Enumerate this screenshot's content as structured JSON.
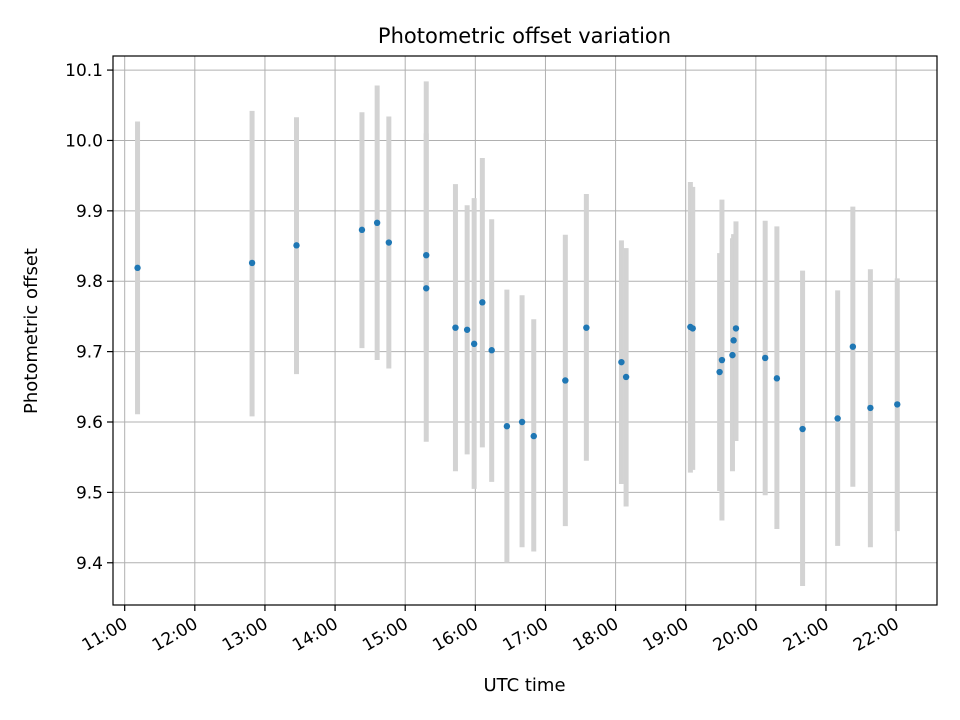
{
  "chart_data": {
    "type": "scatter",
    "title": "Photometric offset variation",
    "xlabel": "UTC time",
    "ylabel": "Photometric offset",
    "x_ticks": [
      "11:00",
      "12:00",
      "13:00",
      "14:00",
      "15:00",
      "16:00",
      "17:00",
      "18:00",
      "19:00",
      "20:00",
      "21:00",
      "22:00"
    ],
    "y_ticks": [
      "9.4",
      "9.5",
      "9.6",
      "9.7",
      "9.8",
      "9.9",
      "10.0",
      "10.1"
    ],
    "xlim": [
      "10:50",
      "22:35"
    ],
    "ylim": [
      9.34,
      10.12
    ],
    "grid": true,
    "marker_color": "#1f77b4",
    "errorbar_color": "#d3d3d3",
    "points": [
      {
        "x": "11:11",
        "y": 9.819,
        "ylow": 9.611,
        "yhigh": 10.027
      },
      {
        "x": "12:49",
        "y": 9.826,
        "ylow": 9.608,
        "yhigh": 10.042
      },
      {
        "x": "13:27",
        "y": 9.851,
        "ylow": 9.668,
        "yhigh": 10.033
      },
      {
        "x": "14:23",
        "y": 9.873,
        "ylow": 9.705,
        "yhigh": 10.04
      },
      {
        "x": "14:36",
        "y": 9.883,
        "ylow": 9.688,
        "yhigh": 10.078
      },
      {
        "x": "14:46",
        "y": 9.855,
        "ylow": 9.676,
        "yhigh": 10.034
      },
      {
        "x": "15:18",
        "y": 9.837,
        "ylow": 9.7,
        "yhigh": 10.01
      },
      {
        "x": "15:18",
        "y": 9.79,
        "ylow": 9.572,
        "yhigh": 10.084
      },
      {
        "x": "15:43",
        "y": 9.734,
        "ylow": 9.53,
        "yhigh": 9.938
      },
      {
        "x": "15:53",
        "y": 9.731,
        "ylow": 9.554,
        "yhigh": 9.908
      },
      {
        "x": "15:59",
        "y": 9.711,
        "ylow": 9.505,
        "yhigh": 9.918
      },
      {
        "x": "16:06",
        "y": 9.77,
        "ylow": 9.564,
        "yhigh": 9.975
      },
      {
        "x": "16:14",
        "y": 9.702,
        "ylow": 9.515,
        "yhigh": 9.888
      },
      {
        "x": "16:27",
        "y": 9.594,
        "ylow": 9.4,
        "yhigh": 9.788
      },
      {
        "x": "16:40",
        "y": 9.6,
        "ylow": 9.422,
        "yhigh": 9.78
      },
      {
        "x": "16:50",
        "y": 9.58,
        "ylow": 9.416,
        "yhigh": 9.746
      },
      {
        "x": "17:17",
        "y": 9.659,
        "ylow": 9.452,
        "yhigh": 9.866
      },
      {
        "x": "17:35",
        "y": 9.734,
        "ylow": 9.545,
        "yhigh": 9.924
      },
      {
        "x": "18:05",
        "y": 9.685,
        "ylow": 9.512,
        "yhigh": 9.858
      },
      {
        "x": "18:09",
        "y": 9.664,
        "ylow": 9.48,
        "yhigh": 9.847
      },
      {
        "x": "19:04",
        "y": 9.735,
        "ylow": 9.528,
        "yhigh": 9.941
      },
      {
        "x": "19:06",
        "y": 9.733,
        "ylow": 9.532,
        "yhigh": 9.934
      },
      {
        "x": "19:29",
        "y": 9.671,
        "ylow": 9.502,
        "yhigh": 9.84
      },
      {
        "x": "19:31",
        "y": 9.688,
        "ylow": 9.46,
        "yhigh": 9.916
      },
      {
        "x": "19:40",
        "y": 9.695,
        "ylow": 9.53,
        "yhigh": 9.861
      },
      {
        "x": "19:41",
        "y": 9.716,
        "ylow": 9.578,
        "yhigh": 9.867
      },
      {
        "x": "19:43",
        "y": 9.733,
        "ylow": 9.573,
        "yhigh": 9.885
      },
      {
        "x": "20:08",
        "y": 9.691,
        "ylow": 9.496,
        "yhigh": 9.886
      },
      {
        "x": "20:18",
        "y": 9.662,
        "ylow": 9.448,
        "yhigh": 9.878
      },
      {
        "x": "20:40",
        "y": 9.59,
        "ylow": 9.367,
        "yhigh": 9.815
      },
      {
        "x": "21:10",
        "y": 9.605,
        "ylow": 9.424,
        "yhigh": 9.787
      },
      {
        "x": "21:23",
        "y": 9.707,
        "ylow": 9.508,
        "yhigh": 9.906
      },
      {
        "x": "21:38",
        "y": 9.62,
        "ylow": 9.422,
        "yhigh": 9.817
      },
      {
        "x": "22:01",
        "y": 9.625,
        "ylow": 9.445,
        "yhigh": 9.804
      }
    ]
  }
}
